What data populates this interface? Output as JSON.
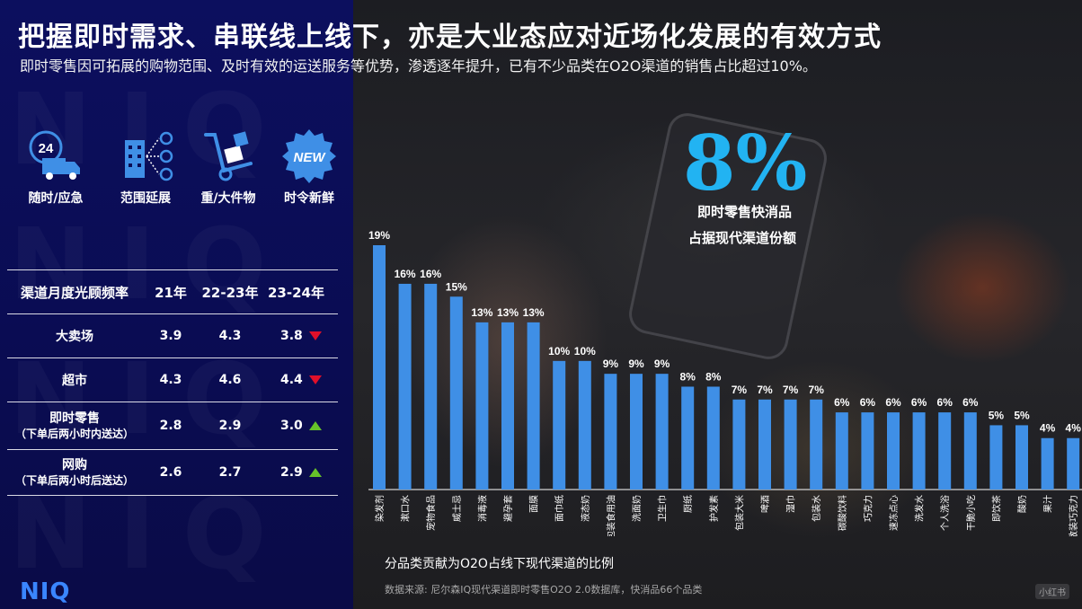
{
  "title": "把握即时需求、串联线上线下，亦是大业态应对近场化发展的有效方式",
  "subtitle": "即时零售因可拓展的购物范围、及时有效的运送服务等优势，渗透逐年提升，已有不少品类在O2O渠道的销售占比超过10%。",
  "features": [
    {
      "label": "随时/应急",
      "icon": "24h-truck-icon",
      "badge": "24"
    },
    {
      "label": "范围延展",
      "icon": "building-network-icon"
    },
    {
      "label": "重/大件物",
      "icon": "hand-truck-icon"
    },
    {
      "label": "时令新鲜",
      "icon": "new-badge-icon",
      "badge": "NEW"
    }
  ],
  "table": {
    "headers": [
      "渠道月度光顾频率",
      "21年",
      "22-23年",
      "23-24年"
    ],
    "rows": [
      {
        "channel": "大卖场",
        "sub": "",
        "v21": "3.9",
        "v22": "4.3",
        "v23": "3.8",
        "trend": "down"
      },
      {
        "channel": "超市",
        "sub": "",
        "v21": "4.3",
        "v22": "4.6",
        "v23": "4.4",
        "trend": "down"
      },
      {
        "channel": "即时零售",
        "sub": "（下单后两小时内送达）",
        "v21": "2.8",
        "v22": "2.9",
        "v23": "3.0",
        "trend": "up"
      },
      {
        "channel": "网购",
        "sub": "（下单后两小时后送达）",
        "v21": "2.6",
        "v22": "2.7",
        "v23": "2.9",
        "trend": "up"
      }
    ]
  },
  "highlight": {
    "value": "8%",
    "caption1": "即时零售快消品",
    "caption2": "占据现代渠道份额"
  },
  "chart_data": {
    "type": "bar",
    "categories": [
      "染发剂",
      "漱口水",
      "宠物食品",
      "威士忌",
      "消毒液",
      "避孕套",
      "面膜",
      "面巾纸",
      "液态奶",
      "包装食用油",
      "洗面奶",
      "卫生巾",
      "厨纸",
      "护发素",
      "包装大米",
      "啤酒",
      "湿巾",
      "包装水",
      "碳酸饮料",
      "巧克力",
      "速冻点心",
      "洗发水",
      "个人洗浴",
      "干脆小吃",
      "即饮茶",
      "酸奶",
      "果汁",
      "散装巧克力"
    ],
    "values": [
      19,
      16,
      16,
      15,
      13,
      13,
      13,
      10,
      10,
      9,
      9,
      9,
      8,
      8,
      7,
      7,
      7,
      7,
      6,
      6,
      6,
      6,
      6,
      6,
      5,
      5,
      4,
      4
    ],
    "value_suffix": "%",
    "title": "分品类贡献为O2O占线下现代渠道的比例",
    "xlabel": "",
    "ylabel": "",
    "ylim": [
      0,
      19
    ],
    "grid": false,
    "bar_color": "#3f8fe6"
  },
  "source": "数据来源: 尼尔森IQ现代渠道即时零售O2O 2.0数据库，快消品66个品类",
  "logo": "NIQ",
  "watermark_text": "NIQ",
  "corner_mark": "小红书",
  "colors": {
    "accent": "#22b3f2",
    "bar": "#3f8fe6",
    "down": "#e0102a",
    "up": "#66c22a",
    "panel": "#0b0d55",
    "logo": "#3a86ff"
  }
}
